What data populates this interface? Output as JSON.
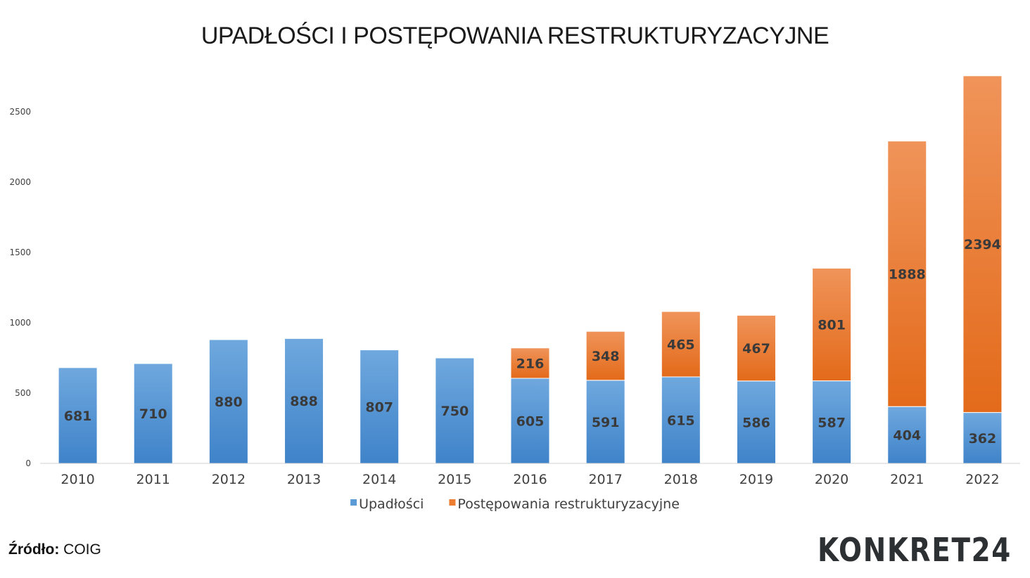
{
  "chart_data": {
    "type": "bar",
    "stacked": true,
    "title": "UPADŁOŚCI I POSTĘPOWANIA RESTRUKTURYZACYJNE",
    "categories": [
      "2010",
      "2011",
      "2012",
      "2013",
      "2014",
      "2015",
      "2016",
      "2017",
      "2018",
      "2019",
      "2020",
      "2021",
      "2022"
    ],
    "series": [
      {
        "name": "Upadłości",
        "color": "#5b9bd5",
        "values": [
          681,
          710,
          880,
          888,
          807,
          750,
          605,
          591,
          615,
          586,
          587,
          404,
          362
        ]
      },
      {
        "name": "Postępowania restrukturyzacyjne",
        "color": "#ed7d31",
        "values": [
          null,
          null,
          null,
          null,
          null,
          null,
          216,
          348,
          465,
          467,
          801,
          1888,
          2394
        ]
      }
    ],
    "ylim": [
      0,
      2750
    ],
    "yticks": [
      0,
      500,
      1000,
      1500,
      2000,
      2500
    ],
    "legend": "bottom"
  },
  "source": {
    "label": "Źródło:",
    "value": "COIG"
  },
  "logo": {
    "text": "KONKRET24"
  }
}
